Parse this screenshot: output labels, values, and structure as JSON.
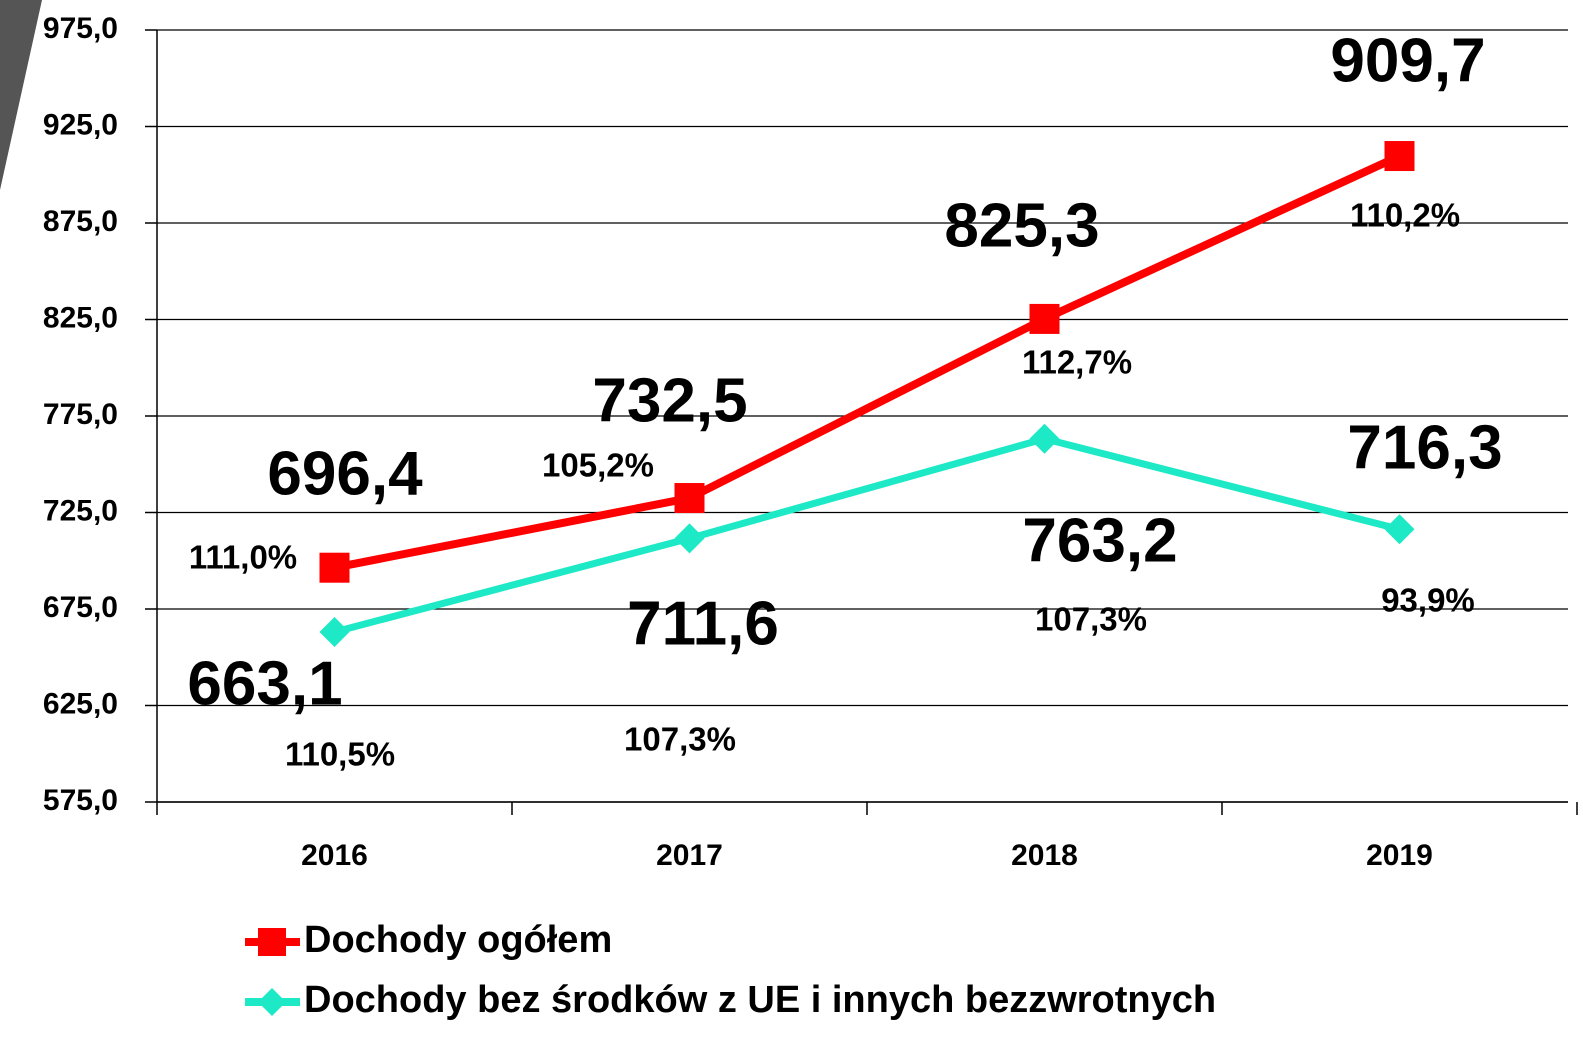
{
  "chart_data": {
    "type": "line",
    "categories": [
      "2016",
      "2017",
      "2018",
      "2019"
    ],
    "series": [
      {
        "name": "Dochody ogółem",
        "color": "#ff0000",
        "marker": "square",
        "values": [
          696.4,
          732.5,
          825.3,
          909.7
        ],
        "value_labels": [
          "696,4",
          "732,5",
          "825,3",
          "909,7"
        ],
        "growth_labels": [
          "111,0%",
          "105,2%",
          "112,7%",
          "110,2%"
        ]
      },
      {
        "name": "Dochody bez środków z UE i innych bezzwrotnych",
        "color": "#1de9c6",
        "marker": "diamond",
        "values": [
          663.1,
          711.6,
          763.2,
          716.3
        ],
        "value_labels": [
          "663,1",
          "711,6",
          "763,2",
          "716,3"
        ],
        "growth_labels": [
          "110,5%",
          "107,3%",
          "107,3%",
          "93,9%"
        ]
      }
    ],
    "ylim": [
      575,
      975
    ],
    "yticks": [
      {
        "value": 575,
        "label": "575,0"
      },
      {
        "value": 625,
        "label": "625,0"
      },
      {
        "value": 675,
        "label": "675,0"
      },
      {
        "value": 725,
        "label": "725,0"
      },
      {
        "value": 775,
        "label": "775,0"
      },
      {
        "value": 825,
        "label": "825,0"
      },
      {
        "value": 875,
        "label": "875,0"
      },
      {
        "value": 925,
        "label": "925,0"
      },
      {
        "value": 975,
        "label": "975,0"
      }
    ],
    "grid": true,
    "legend": "bottom"
  }
}
